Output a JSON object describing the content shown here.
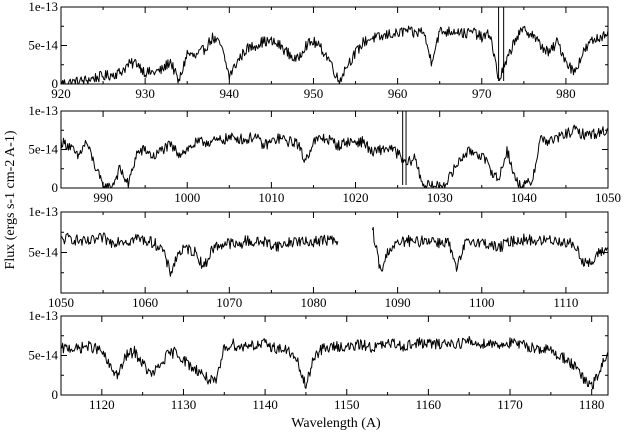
{
  "chart_data": {
    "type": "line",
    "ylabel": "Flux (ergs s-1 cm-2 A-1)",
    "xlabel": "Wavelength (A)",
    "grid": false,
    "legend": "none",
    "line_color": "#000000",
    "panels": [
      {
        "xlim": [
          920,
          985
        ],
        "ylim": [
          0,
          1e-13
        ],
        "xticks": [
          920,
          930,
          940,
          950,
          960,
          970,
          980
        ],
        "xtick_labels": [
          "920",
          "930",
          "940",
          "950",
          "960",
          "970",
          "980"
        ],
        "yticks": [
          0,
          5e-14,
          1e-13
        ],
        "ytick_labels": [
          "0",
          "5e-14",
          "1e-13"
        ],
        "gaps": [],
        "spikes": [
          972.0,
          972.6
        ],
        "x": [
          920,
          921,
          922,
          923,
          924,
          925,
          926,
          927,
          928,
          929,
          930,
          931,
          932,
          933,
          934,
          935,
          936,
          937,
          938,
          939,
          940,
          941,
          942,
          943,
          944,
          945,
          946,
          947,
          948,
          949,
          950,
          951,
          952,
          953,
          954,
          955,
          956,
          957,
          958,
          959,
          960,
          961,
          962,
          963,
          964,
          965,
          966,
          967,
          968,
          969,
          970,
          971,
          972,
          973,
          974,
          975,
          976,
          977,
          978,
          979,
          980,
          981,
          982,
          983,
          984,
          985
        ],
        "y": [
          1e-15,
          2e-15,
          3e-15,
          5e-15,
          8e-15,
          1e-14,
          1.2e-14,
          1.5e-14,
          2.5e-14,
          2.8e-14,
          1.5e-14,
          1.5e-14,
          1.8e-14,
          3e-14,
          2e-15,
          4e-14,
          3.5e-14,
          4.5e-14,
          6e-14,
          5e-14,
          1e-14,
          3e-14,
          4.5e-14,
          5e-14,
          5.5e-14,
          5.5e-14,
          5e-14,
          4e-14,
          3e-14,
          5e-14,
          5.5e-14,
          4.5e-14,
          3e-14,
          3e-15,
          2.5e-14,
          4e-14,
          5.5e-14,
          6e-14,
          6e-14,
          6.5e-14,
          6.5e-14,
          7e-14,
          6.5e-14,
          7e-14,
          3e-14,
          6.8e-14,
          6.8e-14,
          7e-14,
          6.5e-14,
          6.8e-14,
          6e-14,
          6.5e-14,
          5e-15,
          3e-14,
          6e-14,
          7e-14,
          6.5e-14,
          5e-14,
          4e-14,
          5.5e-14,
          3e-14,
          1.5e-14,
          4e-14,
          5.5e-14,
          6e-14,
          7e-14
        ]
      },
      {
        "xlim": [
          985,
          1050
        ],
        "ylim": [
          0,
          1e-13
        ],
        "xticks": [
          990,
          1000,
          1010,
          1020,
          1030,
          1040,
          1050
        ],
        "xtick_labels": [
          "990",
          "1000",
          "1010",
          "1020",
          "1030",
          "1040",
          "1050"
        ],
        "yticks": [
          0,
          5e-14,
          1e-13
        ],
        "ytick_labels": [
          "0",
          "5e-14",
          "1e-13"
        ],
        "gaps": [],
        "spikes": [
          1025.6,
          1026.0
        ],
        "x": [
          985,
          986,
          987,
          988,
          989,
          990,
          991,
          992,
          993,
          994,
          995,
          996,
          997,
          998,
          999,
          1000,
          1001,
          1002,
          1003,
          1004,
          1005,
          1006,
          1007,
          1008,
          1009,
          1010,
          1011,
          1012,
          1013,
          1014,
          1015,
          1016,
          1017,
          1018,
          1019,
          1020,
          1021,
          1022,
          1023,
          1024,
          1025,
          1026,
          1027,
          1028,
          1029,
          1030,
          1031,
          1032,
          1033,
          1034,
          1035,
          1036,
          1037,
          1038,
          1039,
          1040,
          1041,
          1042,
          1043,
          1044,
          1045,
          1046,
          1047,
          1048,
          1049,
          1050
        ],
        "y": [
          6e-14,
          5.5e-14,
          4e-14,
          6e-14,
          3e-14,
          1e-15,
          1e-15,
          2.5e-14,
          4e-15,
          4.5e-14,
          5e-14,
          4e-14,
          5e-14,
          5.5e-14,
          4.5e-14,
          5e-14,
          5.8e-14,
          6e-14,
          6e-14,
          6.2e-14,
          6.5e-14,
          6.5e-14,
          6.2e-14,
          6.8e-14,
          5.5e-14,
          6e-14,
          6.5e-14,
          6e-14,
          6e-14,
          3.5e-14,
          6e-14,
          6.5e-14,
          6.2e-14,
          5.5e-14,
          6e-14,
          6e-14,
          6e-14,
          4.5e-14,
          5e-14,
          5.2e-14,
          4.5e-14,
          3e-14,
          4e-14,
          5e-15,
          2e-15,
          2e-15,
          1e-14,
          3e-14,
          4.5e-14,
          4.8e-14,
          4.2e-14,
          2.5e-14,
          1e-14,
          5e-14,
          1e-14,
          2e-15,
          1e-14,
          6.5e-14,
          6e-14,
          6.5e-14,
          7e-14,
          7.5e-14,
          7e-14,
          7e-14,
          7.2e-14,
          7.5e-14
        ]
      },
      {
        "xlim": [
          1050,
          1115
        ],
        "ylim": [
          0,
          1e-13
        ],
        "xticks": [
          1050,
          1060,
          1070,
          1080,
          1090,
          1100,
          1110
        ],
        "xtick_labels": [
          "1050",
          "1060",
          "1070",
          "1080",
          "1090",
          "1100",
          "1110"
        ],
        "yticks": [
          5e-14,
          1e-13
        ],
        "ytick_labels": [
          "5e-14",
          "1e-13"
        ],
        "gaps": [
          [
            1083,
            1087
          ]
        ],
        "spikes": [],
        "x": [
          1050,
          1051,
          1052,
          1053,
          1054,
          1055,
          1056,
          1057,
          1058,
          1059,
          1060,
          1061,
          1062,
          1063,
          1064,
          1065,
          1066,
          1067,
          1068,
          1069,
          1070,
          1071,
          1072,
          1073,
          1074,
          1075,
          1076,
          1077,
          1078,
          1079,
          1080,
          1081,
          1082,
          1083,
          1087,
          1088,
          1089,
          1090,
          1091,
          1092,
          1093,
          1094,
          1095,
          1096,
          1097,
          1098,
          1099,
          1100,
          1101,
          1102,
          1103,
          1104,
          1105,
          1106,
          1107,
          1108,
          1109,
          1110,
          1111,
          1112,
          1113,
          1114,
          1115
        ],
        "y": [
          6.5e-14,
          6.8e-14,
          6.5e-14,
          6.2e-14,
          6.5e-14,
          6.8e-14,
          6.2e-14,
          6.6e-14,
          6.4e-14,
          6.8e-14,
          6.5e-14,
          6.2e-14,
          5.5e-14,
          2.5e-14,
          5e-14,
          5.5e-14,
          5e-14,
          3.2e-14,
          5.5e-14,
          6e-14,
          6.2e-14,
          5.8e-14,
          6.5e-14,
          6.2e-14,
          6.4e-14,
          6e-14,
          5.8e-14,
          6.2e-14,
          6.5e-14,
          6.2e-14,
          6.4e-14,
          6.5e-14,
          6.6e-14,
          6e-14,
          8e-14,
          2.5e-14,
          5.5e-14,
          6e-14,
          6.5e-14,
          6.2e-14,
          6.5e-14,
          6.6e-14,
          6.2e-14,
          6.4e-14,
          2.8e-14,
          6e-14,
          6.5e-14,
          6.2e-14,
          6e-14,
          5.5e-14,
          6.2e-14,
          6.5e-14,
          6.6e-14,
          6.5e-14,
          6.4e-14,
          6.6e-14,
          6.5e-14,
          6.2e-14,
          6e-14,
          4e-14,
          3.5e-14,
          5e-14,
          5.5e-14
        ]
      },
      {
        "xlim": [
          1115,
          1182
        ],
        "ylim": [
          0,
          1e-13
        ],
        "xticks": [
          1120,
          1130,
          1140,
          1150,
          1160,
          1170,
          1180
        ],
        "xtick_labels": [
          "1120",
          "1130",
          "1140",
          "1150",
          "1160",
          "1170",
          "1180"
        ],
        "yticks": [
          0,
          5e-14,
          1e-13
        ],
        "ytick_labels": [
          "0",
          "5e-14",
          "1e-13"
        ],
        "gaps": [],
        "spikes": [],
        "x": [
          1115,
          1116,
          1117,
          1118,
          1119,
          1120,
          1121,
          1122,
          1123,
          1124,
          1125,
          1126,
          1127,
          1128,
          1129,
          1130,
          1131,
          1132,
          1133,
          1134,
          1135,
          1136,
          1137,
          1138,
          1139,
          1140,
          1141,
          1142,
          1143,
          1144,
          1145,
          1146,
          1147,
          1148,
          1149,
          1150,
          1151,
          1152,
          1153,
          1154,
          1155,
          1156,
          1157,
          1158,
          1159,
          1160,
          1161,
          1162,
          1163,
          1164,
          1165,
          1166,
          1167,
          1168,
          1169,
          1170,
          1171,
          1172,
          1173,
          1174,
          1175,
          1176,
          1177,
          1178,
          1179,
          1180,
          1181,
          1182
        ],
        "y": [
          5.8e-14,
          6e-14,
          5.8e-14,
          6.2e-14,
          6e-14,
          5.5e-14,
          3.5e-14,
          2.5e-14,
          5e-14,
          5.5e-14,
          4e-14,
          2.5e-14,
          3.5e-14,
          5e-14,
          5.5e-14,
          4.5e-14,
          3.5e-14,
          3e-14,
          2e-14,
          1.5e-14,
          6e-14,
          6.5e-14,
          6e-14,
          6.5e-14,
          6.2e-14,
          6.5e-14,
          6e-14,
          5.8e-14,
          5.5e-14,
          4e-14,
          1e-14,
          5e-14,
          5.8e-14,
          6e-14,
          6.2e-14,
          6e-14,
          6.2e-14,
          6.4e-14,
          6e-14,
          6.2e-14,
          6.4e-14,
          6.5e-14,
          6.2e-14,
          6.4e-14,
          6.6e-14,
          6.5e-14,
          6.4e-14,
          6.6e-14,
          6.5e-14,
          6.6e-14,
          6.8e-14,
          6.4e-14,
          6.6e-14,
          6.5e-14,
          6.4e-14,
          6.6e-14,
          6.4e-14,
          6.2e-14,
          6e-14,
          5.8e-14,
          5.6e-14,
          5e-14,
          4.5e-14,
          3.5e-14,
          2e-14,
          1e-14,
          3e-14,
          5.5e-14
        ]
      }
    ]
  }
}
